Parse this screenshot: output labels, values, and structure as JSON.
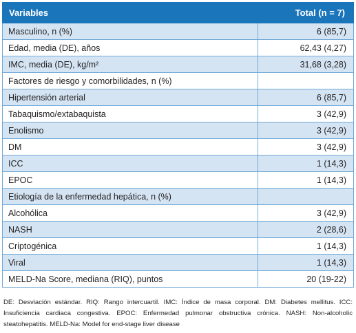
{
  "table": {
    "header": {
      "variable": "Variables",
      "total": "Total (n = 7)"
    },
    "rows": [
      {
        "label": "Masculino, n (%)",
        "value": "6 (85,7)"
      },
      {
        "label": "Edad, media (DE), años",
        "value": "62,43 (4,27)"
      },
      {
        "label": "IMC, media (DE), kg/m²",
        "value": "31,68 (3,28)"
      },
      {
        "label": "Factores de riesgo y comorbilidades, n (%)",
        "value": ""
      },
      {
        "label": "Hipertensión arterial",
        "value": "6 (85,7)"
      },
      {
        "label": "Tabaquismo/extabaquista",
        "value": "3 (42,9)"
      },
      {
        "label": "Enolismo",
        "value": "3 (42,9)"
      },
      {
        "label": "DM",
        "value": "3 (42,9)"
      },
      {
        "label": "ICC",
        "value": "1 (14,3)"
      },
      {
        "label": "EPOC",
        "value": "1 (14,3)"
      },
      {
        "label": "Etiología de la enfermedad hepática, n (%)",
        "value": ""
      },
      {
        "label": "Alcohólica",
        "value": "3 (42,9)"
      },
      {
        "label": "NASH",
        "value": "2 (28,6)"
      },
      {
        "label": "Criptogénica",
        "value": "1 (14,3)"
      },
      {
        "label": "Viral",
        "value": "1 (14,3)"
      },
      {
        "label": "MELD-Na Score, mediana (RIQ), puntos",
        "value": "20 (19-22)"
      }
    ]
  },
  "footnote": "DE: Desviación estándar. RIQ: Rango intercuartil. IMC: Índice de masa corporal. DM: Diabetes mellitus. ICC: Insuficiencia cardiaca congestiva. EPOC: Enfermedad pulmonar obstructiva crónica. NASH: Non-alcoholic steatohepatitis. MELD-Na: Model for end-stage liver disease",
  "colors": {
    "header_bg": "#1b75bb",
    "band_bg": "#d4e4f3",
    "border": "#6fa8d6"
  }
}
